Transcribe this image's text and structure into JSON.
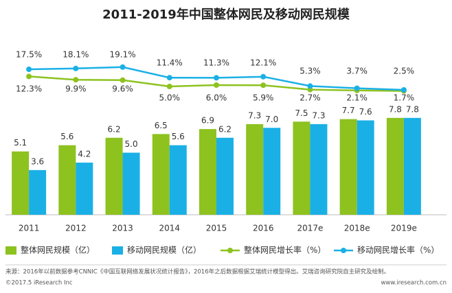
{
  "chart_data": {
    "type": "bar",
    "title": "2011-2019年中国整体网民及移动网民规模",
    "categories": [
      "2011",
      "2012",
      "2013",
      "2014",
      "2015",
      "2016",
      "2017e",
      "2018e",
      "2019e"
    ],
    "ylim": [
      0,
      10
    ],
    "y2lim": [
      0,
      20
    ],
    "series": [
      {
        "name": "整体网民规模（亿）",
        "type": "bar",
        "color": "#8dc21f",
        "values": [
          5.1,
          5.6,
          6.2,
          6.5,
          6.9,
          7.3,
          7.5,
          7.7,
          7.8
        ],
        "value_labels": [
          "5.1",
          "5.6",
          "6.2",
          "6.5",
          "6.9",
          "7.3",
          "7.5",
          "7.7",
          "7.8"
        ]
      },
      {
        "name": "移动网民规模（亿）",
        "type": "bar",
        "color": "#1ab0e6",
        "values": [
          3.6,
          4.2,
          5.0,
          5.6,
          6.2,
          7.0,
          7.3,
          7.6,
          7.8
        ],
        "value_labels": [
          "3.6",
          "4.2",
          "5.0",
          "5.6",
          "6.2",
          "7.0",
          "7.3",
          "7.6",
          "7.8"
        ]
      },
      {
        "name": "整体网民增长率（%）",
        "type": "line",
        "axis": "y2",
        "color": "#8dc21f",
        "values": [
          12.3,
          9.9,
          9.6,
          5.0,
          6.0,
          5.9,
          2.7,
          2.1,
          1.7
        ],
        "value_labels": [
          "12.3%",
          "9.9%",
          "9.6%",
          "5.0%",
          "6.0%",
          "5.9%",
          "2.7%",
          "2.1%",
          "1.7%"
        ]
      },
      {
        "name": "移动网民增长率（%）",
        "type": "line",
        "axis": "y2",
        "color": "#1ab0e6",
        "values": [
          17.5,
          18.1,
          19.1,
          11.4,
          11.3,
          12.1,
          5.3,
          3.7,
          2.5
        ],
        "value_labels": [
          "17.5%",
          "18.1%",
          "19.1%",
          "11.4%",
          "11.3%",
          "12.1%",
          "5.3%",
          "3.7%",
          "2.5%"
        ]
      }
    ],
    "source": "来源：2016年以前数据参考CNNIC《中国互联网络发展状况统计报告》，2016年之后数据根据艾瑞统计模型得出。艾瑞咨询研究院自主研究及绘制。",
    "footer_left": "©2017.5 iResearch Inc",
    "footer_right": "www.iresearch.com.cn"
  }
}
